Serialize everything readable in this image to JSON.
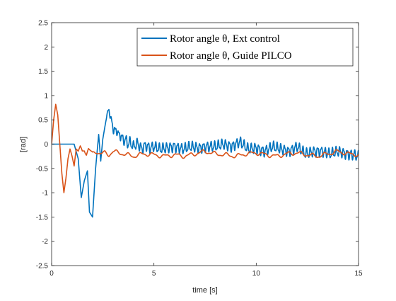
{
  "chart_data": {
    "type": "line",
    "title": "",
    "xlabel": "time [s]",
    "ylabel": "[rad]",
    "xlim": [
      0,
      15
    ],
    "ylim": [
      -2.5,
      2.5
    ],
    "xticks": [
      0,
      5,
      10,
      15
    ],
    "xtick_labels": [
      "0",
      "5",
      "10",
      "15"
    ],
    "yticks": [
      2.5,
      2,
      1.5,
      1,
      0.5,
      0,
      -0.5,
      -1,
      -1.5,
      -2,
      -2.5
    ],
    "ytick_labels": [
      "2.5",
      "2",
      "1.5",
      "1",
      "0.5",
      "0",
      "-0.5",
      "-1",
      "-1.5",
      "-2",
      "-2.5"
    ],
    "grid": false,
    "legend_position": "top-right",
    "series": [
      {
        "name": "Rotor angle θ, Ext control",
        "color": "#0072BD",
        "x": [
          0,
          1.1,
          1.3,
          1.45,
          1.6,
          1.75,
          1.85,
          2.0,
          2.15,
          2.3,
          2.4,
          2.5,
          2.6,
          2.7,
          2.8,
          2.9,
          3.0,
          3.1,
          3.2,
          3.3,
          3.4,
          3.5,
          3.6,
          3.7,
          3.8,
          4.0,
          4.2,
          4.4,
          4.6,
          4.8,
          5.0,
          5.3,
          5.6,
          6.0,
          6.4,
          6.8,
          7.2,
          7.6,
          8.0,
          8.4,
          8.8,
          9.2,
          9.6,
          10.0,
          10.4,
          10.8,
          11.2,
          11.6,
          12.0,
          12.4,
          12.8,
          13.2,
          13.6,
          14.0,
          14.4,
          14.8,
          15.0
        ],
        "y": [
          0,
          0,
          -0.3,
          -1.1,
          -0.75,
          -0.55,
          -1.4,
          -1.5,
          -0.5,
          0.2,
          -0.35,
          0.1,
          0.35,
          0.6,
          0.72,
          0.5,
          0.35,
          0.25,
          0.3,
          0.15,
          0.2,
          0.05,
          0.12,
          0.0,
          0.05,
          -0.05,
          0.02,
          -0.1,
          -0.02,
          -0.08,
          -0.05,
          -0.1,
          -0.08,
          -0.05,
          -0.1,
          -0.05,
          -0.08,
          -0.05,
          -0.05,
          0.0,
          -0.05,
          0.05,
          -0.1,
          -0.08,
          -0.15,
          -0.05,
          -0.1,
          -0.15,
          -0.05,
          -0.2,
          -0.15,
          -0.15,
          -0.2,
          -0.15,
          -0.2,
          -0.22,
          -0.25
        ],
        "oscillation_amplitude": 0.09,
        "oscillation_period": 0.18
      },
      {
        "name": "Rotor angle θ, Guide PILCO",
        "color": "#D95319",
        "x": [
          0,
          0.1,
          0.2,
          0.3,
          0.4,
          0.5,
          0.6,
          0.7,
          0.8,
          0.9,
          1.0,
          1.1,
          1.2,
          1.3,
          1.4,
          1.5,
          1.6,
          1.7,
          1.8,
          1.9,
          2.0,
          2.2,
          2.4,
          2.6,
          2.8,
          3.0,
          3.5,
          4.0,
          4.5,
          5.0,
          5.5,
          6.0,
          6.5,
          7.0,
          7.5,
          8.0,
          8.5,
          9.0,
          9.5,
          10.0,
          10.5,
          11.0,
          11.5,
          12.0,
          12.5,
          13.0,
          13.5,
          14.0,
          14.5,
          15.0
        ],
        "y": [
          0,
          0.5,
          0.82,
          0.6,
          0.0,
          -0.6,
          -1.0,
          -0.7,
          -0.3,
          -0.1,
          -0.25,
          -0.45,
          -0.1,
          -0.15,
          -0.05,
          -0.15,
          -0.1,
          -0.2,
          -0.1,
          -0.15,
          -0.2,
          -0.15,
          -0.2,
          -0.18,
          -0.22,
          -0.15,
          -0.2,
          -0.25,
          -0.2,
          -0.22,
          -0.25,
          -0.22,
          -0.25,
          -0.2,
          -0.15,
          -0.2,
          -0.22,
          -0.25,
          -0.2,
          -0.18,
          -0.22,
          -0.25,
          -0.2,
          -0.18,
          -0.22,
          -0.25,
          -0.2,
          -0.15,
          -0.2,
          -0.22
        ],
        "oscillation_amplitude": 0.035,
        "oscillation_period": 0.6
      }
    ]
  }
}
